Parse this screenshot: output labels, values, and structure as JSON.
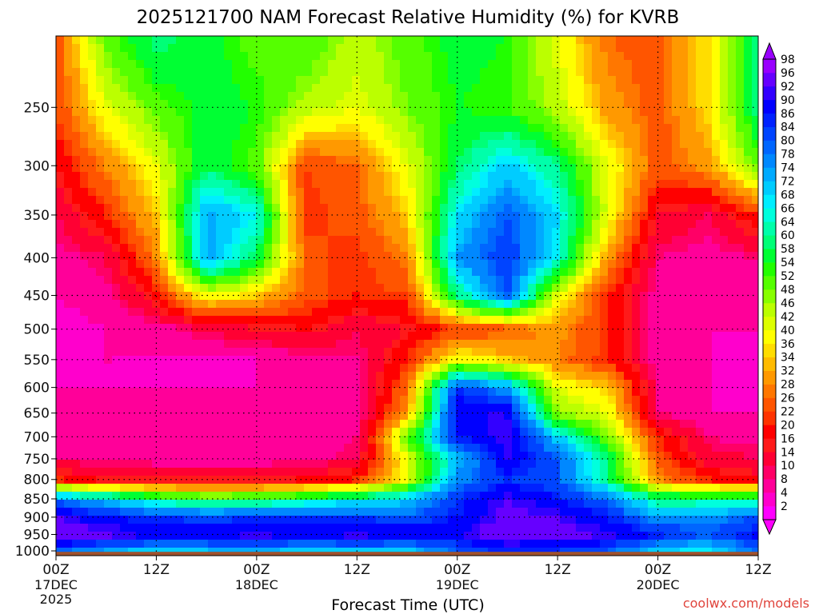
{
  "chart_data": {
    "type": "heatmap",
    "title": "2025121700 NAM Forecast Relative Humidity (%) for KVRB",
    "xlabel": "Forecast Time (UTC)",
    "ylabel": "",
    "credit": "coolwx.com/models",
    "x_ticks": [
      {
        "hour": 0,
        "label": "00Z",
        "date": "17DEC",
        "year": "2025"
      },
      {
        "hour": 12,
        "label": "12Z",
        "date": "",
        "year": ""
      },
      {
        "hour": 24,
        "label": "00Z",
        "date": "18DEC",
        "year": ""
      },
      {
        "hour": 36,
        "label": "12Z",
        "date": "",
        "year": ""
      },
      {
        "hour": 48,
        "label": "00Z",
        "date": "19DEC",
        "year": ""
      },
      {
        "hour": 60,
        "label": "12Z",
        "date": "",
        "year": ""
      },
      {
        "hour": 72,
        "label": "00Z",
        "date": "20DEC",
        "year": ""
      },
      {
        "hour": 84,
        "label": "12Z",
        "date": "",
        "year": ""
      }
    ],
    "xlim_hours": [
      0,
      84
    ],
    "y_ticks": [
      250,
      300,
      350,
      400,
      450,
      500,
      550,
      600,
      650,
      700,
      750,
      800,
      850,
      900,
      950,
      1000
    ],
    "y_axis_unit": "hPa",
    "ylim": [
      1015,
      200
    ],
    "y_scale": "log",
    "grid": true,
    "colorbar_levels": [
      2,
      4,
      8,
      10,
      14,
      16,
      20,
      22,
      26,
      28,
      32,
      34,
      36,
      40,
      42,
      46,
      48,
      52,
      54,
      58,
      60,
      64,
      66,
      68,
      72,
      74,
      78,
      80,
      84,
      86,
      90,
      92,
      96,
      98
    ],
    "colorbar_colors": [
      "#ff00ff",
      "#ff00cc",
      "#ff0099",
      "#ff0066",
      "#ff0033",
      "#ff1a1a",
      "#ff0000",
      "#ff3300",
      "#ff5500",
      "#ff7700",
      "#ff9900",
      "#ffbb00",
      "#ffdd00",
      "#ffff00",
      "#ddff00",
      "#bbff00",
      "#88ff00",
      "#55ff00",
      "#22ff00",
      "#00ff33",
      "#00ff77",
      "#00ffaa",
      "#00ffdd",
      "#00eeff",
      "#00ccff",
      "#00aaff",
      "#0088ff",
      "#0066ff",
      "#0044ff",
      "#0022ff",
      "#0000ff",
      "#3300ff",
      "#6600ff",
      "#9900ff"
    ],
    "value_range": [
      0,
      100
    ],
    "values_grid": {
      "hours": [
        0,
        6,
        12,
        18,
        24,
        30,
        36,
        42,
        48,
        54,
        60,
        66,
        72,
        78,
        84
      ],
      "pressures": [
        200,
        250,
        300,
        350,
        400,
        450,
        500,
        550,
        600,
        650,
        700,
        750,
        800,
        850,
        900,
        950,
        1000
      ],
      "rh": [
        [
          24,
          50,
          60,
          56,
          50,
          52,
          44,
          50,
          56,
          54,
          40,
          26,
          24,
          36,
          60
        ],
        [
          22,
          40,
          50,
          56,
          54,
          44,
          40,
          48,
          54,
          52,
          44,
          30,
          24,
          36,
          60
        ],
        [
          16,
          28,
          40,
          58,
          50,
          22,
          26,
          40,
          58,
          70,
          60,
          40,
          24,
          30,
          50
        ],
        [
          10,
          20,
          34,
          74,
          66,
          20,
          24,
          34,
          68,
          80,
          68,
          40,
          14,
          10,
          20
        ],
        [
          6,
          10,
          28,
          74,
          58,
          24,
          20,
          28,
          74,
          84,
          66,
          30,
          8,
          6,
          8
        ],
        [
          4,
          6,
          18,
          40,
          34,
          24,
          20,
          22,
          60,
          80,
          40,
          20,
          6,
          4,
          6
        ],
        [
          2,
          4,
          6,
          10,
          14,
          16,
          10,
          14,
          22,
          24,
          30,
          20,
          6,
          4,
          4
        ],
        [
          2,
          4,
          4,
          4,
          4,
          6,
          8,
          20,
          40,
          34,
          28,
          20,
          6,
          4,
          4
        ],
        [
          4,
          4,
          4,
          4,
          4,
          6,
          6,
          26,
          84,
          74,
          40,
          34,
          8,
          4,
          4
        ],
        [
          6,
          6,
          6,
          6,
          6,
          6,
          6,
          30,
          90,
          90,
          46,
          40,
          8,
          4,
          4
        ],
        [
          6,
          6,
          6,
          6,
          6,
          6,
          8,
          50,
          86,
          92,
          70,
          48,
          20,
          8,
          6
        ],
        [
          8,
          8,
          6,
          6,
          6,
          6,
          10,
          40,
          70,
          90,
          80,
          60,
          24,
          12,
          10
        ],
        [
          20,
          14,
          14,
          14,
          14,
          16,
          20,
          40,
          76,
          84,
          80,
          60,
          28,
          20,
          16
        ],
        [
          78,
          70,
          60,
          54,
          56,
          60,
          64,
          70,
          84,
          92,
          86,
          78,
          60,
          60,
          60
        ],
        [
          92,
          86,
          84,
          82,
          84,
          84,
          84,
          80,
          86,
          94,
          92,
          86,
          74,
          76,
          80
        ],
        [
          96,
          94,
          90,
          90,
          92,
          90,
          92,
          90,
          90,
          96,
          94,
          92,
          86,
          80,
          88
        ],
        [
          80,
          74,
          70,
          72,
          74,
          70,
          72,
          70,
          80,
          86,
          84,
          80,
          70,
          66,
          80
        ]
      ]
    },
    "colors": {
      "frame": "#000000",
      "grid": "#000000",
      "ground": "#a0522d",
      "credit": "#e0443c"
    }
  }
}
